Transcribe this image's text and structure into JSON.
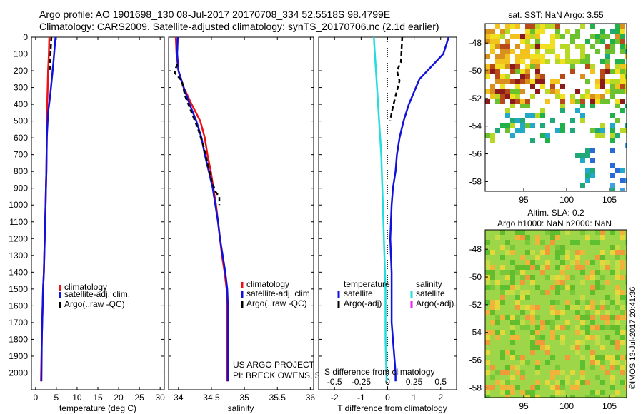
{
  "title": {
    "line1": "Argo profile: AO 1901698_130 08-Jul-2017 20170708_334 52.5518S 98.4799E",
    "line2": "Climatology: CARS2009. Satellite-adjusted climatology: synTS_20170706.nc (2.1d earlier)"
  },
  "depth_axis": {
    "ylim": [
      0,
      2100
    ],
    "ticks": [
      0,
      100,
      200,
      300,
      400,
      500,
      600,
      700,
      800,
      900,
      1000,
      1100,
      1200,
      1300,
      1400,
      1500,
      1600,
      1700,
      1800,
      1900,
      2000
    ]
  },
  "colors": {
    "climatology": "#ee1111",
    "satellite": "#1111dd",
    "argo": "#000000",
    "salinity_satellite": "#22dddd",
    "salinity_argo": "#ee22ee"
  },
  "chart_data": [
    {
      "type": "line",
      "name": "temperature",
      "xlabel": "temperature (deg C)",
      "xlim": [
        -1,
        31
      ],
      "xticks": [
        0,
        5,
        10,
        15,
        20,
        25,
        30
      ],
      "legend": [
        "climatology",
        "satellite-adj. clim.",
        "Argo(..raw -QC)"
      ],
      "series": [
        {
          "name": "climatology",
          "x": [
            3.3,
            3.2,
            3.0,
            2.9,
            2.8,
            2.7,
            2.6,
            2.5,
            2.4,
            2.3,
            2.2,
            2.1,
            2.0,
            1.8,
            1.7,
            1.6,
            1.5,
            1.4,
            1.3
          ],
          "y": [
            0,
            100,
            200,
            300,
            400,
            600,
            800,
            900,
            1000,
            1100,
            1200,
            1300,
            1400,
            1500,
            1600,
            1700,
            1800,
            1900,
            2050
          ]
        },
        {
          "name": "satellite-adj. clim.",
          "x": [
            4.8,
            4.6,
            4.3,
            3.9,
            3.5,
            3.0,
            2.7,
            2.6,
            2.5,
            2.4,
            2.3,
            2.2,
            2.1,
            2.0,
            1.8,
            1.7,
            1.6,
            1.5,
            1.4
          ],
          "y": [
            0,
            60,
            150,
            250,
            350,
            450,
            600,
            800,
            900,
            1000,
            1100,
            1200,
            1300,
            1400,
            1500,
            1600,
            1700,
            1800,
            2050
          ]
        },
        {
          "name": "Argo(..raw -QC)",
          "x": [
            3.8,
            3.7,
            3.5,
            3.4
          ],
          "y": [
            0,
            50,
            150,
            200
          ]
        }
      ]
    },
    {
      "type": "line",
      "name": "salinity",
      "xlabel": "salinity",
      "xlim": [
        33.85,
        36.05
      ],
      "xticks": [
        34,
        34.5,
        35,
        35.5,
        36
      ],
      "xticklabels": [
        "34",
        "34.5",
        "35",
        "35.5",
        "36"
      ],
      "legend": [
        "climatology",
        "satellite-adj. clim.",
        "Argo(..raw -QC)"
      ],
      "series": [
        {
          "name": "climatology",
          "x": [
            33.96,
            33.97,
            34.0,
            34.08,
            34.2,
            34.33,
            34.4,
            34.44,
            34.49,
            34.53,
            34.57,
            34.6,
            34.63,
            34.66,
            34.7,
            34.73,
            34.74,
            34.74,
            34.74
          ],
          "y": [
            0,
            100,
            200,
            300,
            400,
            500,
            600,
            700,
            800,
            900,
            1000,
            1100,
            1200,
            1300,
            1400,
            1500,
            1600,
            1800,
            2050
          ]
        },
        {
          "name": "satellite-adj. clim.",
          "x": [
            33.99,
            33.98,
            34.0,
            34.08,
            34.17,
            34.27,
            34.35,
            34.4,
            34.46,
            34.52,
            34.56,
            34.6,
            34.63,
            34.67,
            34.71,
            34.74,
            34.75,
            34.75,
            34.75
          ],
          "y": [
            0,
            100,
            200,
            300,
            400,
            500,
            600,
            700,
            800,
            900,
            1000,
            1100,
            1200,
            1300,
            1400,
            1500,
            1600,
            1800,
            2050
          ]
        },
        {
          "name": "Argo(..raw -QC)",
          "x": [
            33.98,
            33.94,
            34.05,
            34.1,
            34.2,
            34.3,
            34.38,
            34.44,
            34.5,
            34.56,
            34.62,
            34.62
          ],
          "y": [
            160,
            210,
            260,
            350,
            450,
            550,
            650,
            750,
            850,
            920,
            950,
            1000
          ]
        }
      ]
    },
    {
      "type": "line",
      "name": "difference",
      "xlabel": "T difference from climatology",
      "xlabel2": "S difference from climatology",
      "xlim": [
        -2.6,
        2.6
      ],
      "xticks": [
        -2,
        -1,
        0,
        1,
        2
      ],
      "xticks2": [
        -0.5,
        -0.25,
        0,
        0.25,
        0.5
      ],
      "xticks2_labels": [
        "-0.5",
        "-0.25",
        "0",
        "0.25",
        "0.5"
      ],
      "legend_headers": [
        "temperature",
        "salinity"
      ],
      "legend": [
        "satellite",
        "Argo(-adj)",
        "satellite",
        "Argo(-adj)"
      ],
      "series": [
        {
          "name": "temperature satellite",
          "x": [
            2.3,
            2.1,
            1.2,
            0.8,
            0.6,
            0.45,
            0.35,
            0.3,
            0.2,
            0.15,
            0.1,
            0.15,
            0.15,
            0.15,
            0.2,
            0.25,
            0.3,
            0.3
          ],
          "y": [
            0,
            100,
            250,
            400,
            500,
            600,
            700,
            800,
            900,
            1000,
            1200,
            1400,
            1600,
            1700,
            1800,
            1900,
            2000,
            2050
          ]
        },
        {
          "name": "temperature Argo(-adj)",
          "x": [
            0.55,
            0.5,
            0.35,
            0.45,
            0.3,
            0.15,
            0.1
          ],
          "y": [
            0,
            150,
            200,
            260,
            350,
            450,
            500
          ]
        },
        {
          "name": "salinity satellite",
          "x": [
            -0.13,
            -0.12,
            -0.1,
            -0.08,
            -0.06,
            -0.05,
            -0.04,
            -0.03,
            -0.02,
            -0.02,
            -0.01
          ],
          "y": [
            0,
            100,
            300,
            500,
            700,
            900,
            1100,
            1300,
            1500,
            1800,
            2050
          ]
        }
      ]
    },
    {
      "type": "heatmap",
      "name": "sat-sst-map",
      "title": "sat. SST: NaN Argo: 3.55",
      "xlim": [
        90.5,
        107
      ],
      "ylim": [
        -58.7,
        -46.6
      ],
      "xticks": [
        95,
        100,
        105
      ],
      "yticks": [
        -48,
        -50,
        -52,
        -54,
        -56,
        -58
      ]
    },
    {
      "type": "heatmap",
      "name": "altim-sla-map",
      "title1": "Altim. SLA: 0.2",
      "title2": "Argo h1000: NaN h2000: NaN",
      "xlim": [
        90.5,
        107
      ],
      "ylim": [
        -58.7,
        -46.6
      ],
      "xticks": [
        95,
        100,
        105
      ],
      "yticks": [
        -48,
        -50,
        -52,
        -54,
        -56,
        -58
      ]
    }
  ],
  "annotations": {
    "project_line1": "US ARGO PROJECT",
    "project_line2": "PI: BRECK OWENS, STEVE JAYNE, AND P.E. ROBBINS",
    "watermark": "©IMOS 13-Jul-2017 20:41:36"
  }
}
